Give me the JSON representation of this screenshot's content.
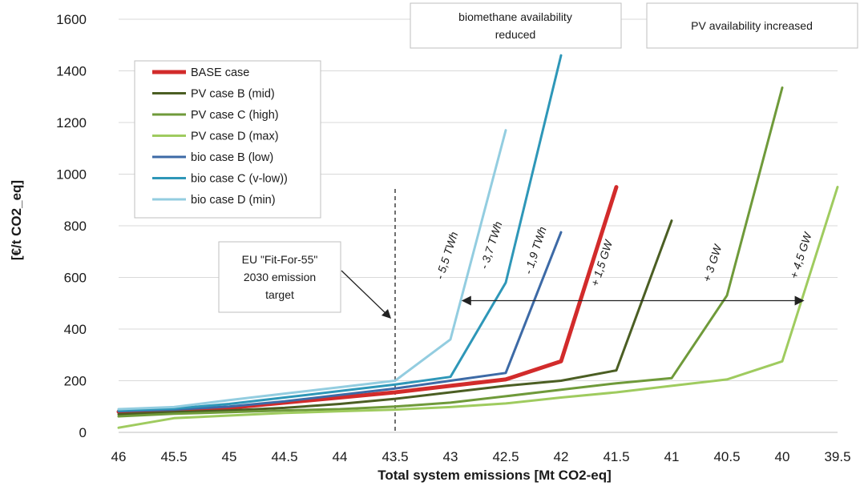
{
  "chart_data": {
    "type": "line",
    "xlabel": "Total system emissions [Mt CO2-eq]",
    "ylabel": "[€/t CO2_eq]",
    "x_ticks": [
      46,
      45.5,
      45,
      44.5,
      44,
      43.5,
      43,
      42.5,
      42,
      41.5,
      41,
      40.5,
      40,
      39.5
    ],
    "y_ticks": [
      0,
      200,
      400,
      600,
      800,
      1000,
      1200,
      1400,
      1600
    ],
    "xlim": [
      46,
      39.5
    ],
    "ylim": [
      0,
      1600
    ],
    "x_axis_reversed": true,
    "grid": "horizontal",
    "legend_position": "top-left",
    "series": [
      {
        "name": "BASE case",
        "color": "#d22b2b",
        "width": "thick",
        "x": [
          46,
          45.5,
          45,
          44.5,
          44,
          43.5,
          43,
          42.5,
          42,
          41.5
        ],
        "y": [
          80,
          85,
          95,
          115,
          135,
          155,
          180,
          205,
          275,
          950
        ]
      },
      {
        "name": "PV case B (mid)",
        "color": "#4b5e23",
        "width": "normal",
        "x": [
          46,
          45.5,
          45,
          44.5,
          44,
          43.5,
          43,
          42.5,
          42,
          41.5,
          41
        ],
        "y": [
          70,
          78,
          85,
          95,
          110,
          130,
          155,
          180,
          200,
          240,
          820
        ]
      },
      {
        "name": "PV case C (high)",
        "color": "#6f9a3a",
        "width": "normal",
        "x": [
          46,
          45.5,
          45,
          44.5,
          44,
          43.5,
          43,
          42.5,
          42,
          41.5,
          41,
          40.5,
          40
        ],
        "y": [
          62,
          72,
          78,
          85,
          90,
          100,
          115,
          140,
          165,
          190,
          210,
          530,
          1335
        ]
      },
      {
        "name": "PV case D (max)",
        "color": "#9fcb5f",
        "width": "normal",
        "x": [
          46,
          45.5,
          45,
          44.5,
          44,
          43.5,
          43,
          42.5,
          42,
          41.5,
          41,
          40.5,
          40,
          39.5
        ],
        "y": [
          18,
          55,
          65,
          75,
          82,
          88,
          98,
          112,
          135,
          155,
          180,
          205,
          275,
          950
        ]
      },
      {
        "name": "bio case B (low)",
        "color": "#3d6aa6",
        "width": "normal",
        "x": [
          46,
          45.5,
          45,
          44.5,
          44,
          43.5,
          43,
          42.5,
          42
        ],
        "y": [
          82,
          88,
          100,
          120,
          145,
          170,
          200,
          230,
          775
        ]
      },
      {
        "name": "bio case C (v-low))",
        "color": "#2e97b8",
        "width": "normal",
        "x": [
          46,
          45.5,
          45,
          44.5,
          44,
          43.5,
          43,
          42.5,
          42
        ],
        "y": [
          85,
          92,
          110,
          135,
          160,
          185,
          215,
          580,
          1460
        ]
      },
      {
        "name": "bio case D (min)",
        "color": "#93cde0",
        "width": "normal",
        "x": [
          46,
          45.5,
          45,
          44.5,
          44,
          43.5,
          43,
          42.5
        ],
        "y": [
          90,
          98,
          125,
          150,
          175,
          200,
          360,
          1170
        ]
      }
    ],
    "reference_line": {
      "x": 43.5,
      "style": "dashed"
    },
    "annotations": {
      "target_box": "EU \"Fit-For-55\" 2030 emission target",
      "biomethane_box": "biomethane availability reduced",
      "pv_box": "PV availability increased",
      "arrow_y": 510,
      "arrow_x": [
        42.9,
        39.8
      ],
      "shift_labels": [
        {
          "text": "- 5,5 TWh",
          "x": 43.0,
          "y": 680
        },
        {
          "text": "- 3,7 TWh",
          "x": 42.6,
          "y": 720
        },
        {
          "text": "- 1,9 TWh",
          "x": 42.2,
          "y": 700
        },
        {
          "text": "+ 1,5 GW",
          "x": 41.6,
          "y": 650
        },
        {
          "text": "+ 3 GW",
          "x": 40.6,
          "y": 650
        },
        {
          "text": "+ 4,5 GW",
          "x": 39.8,
          "y": 680
        }
      ]
    }
  }
}
